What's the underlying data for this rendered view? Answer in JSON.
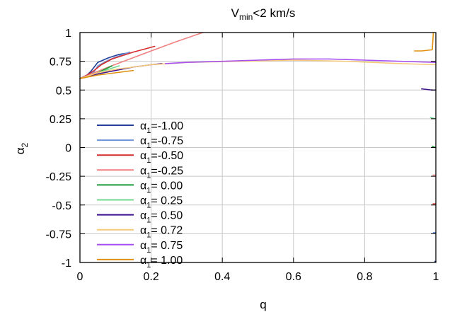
{
  "chart_data": {
    "type": "line",
    "title": {
      "prefix": "V",
      "subscript": "min",
      "suffix": "<2 km/s"
    },
    "xlabel": "q",
    "ylabel": {
      "symbol": "α",
      "subscript": "2"
    },
    "xlim": [
      0,
      1
    ],
    "ylim": [
      -1,
      1
    ],
    "xticks": [
      {
        "value": 0,
        "label": "0"
      },
      {
        "value": 0.2,
        "label": "0.2"
      },
      {
        "value": 0.4,
        "label": "0.4"
      },
      {
        "value": 0.6,
        "label": "0.6"
      },
      {
        "value": 0.8,
        "label": "0.8"
      },
      {
        "value": 1,
        "label": "1"
      }
    ],
    "yticks": [
      {
        "value": 1,
        "label": "1"
      },
      {
        "value": 0.75,
        "label": "0.75"
      },
      {
        "value": 0.5,
        "label": "0.5"
      },
      {
        "value": 0.25,
        "label": "0.25"
      },
      {
        "value": 0,
        "label": "0"
      },
      {
        "value": -0.25,
        "label": "-0.25"
      },
      {
        "value": -0.5,
        "label": "-0.5"
      },
      {
        "value": -0.75,
        "label": "-0.75"
      },
      {
        "value": -1,
        "label": "-1"
      }
    ],
    "grid": true,
    "legend_position": "middle-left",
    "series": [
      {
        "name_symbol": "α",
        "name_subscript": "1",
        "name_suffix": "=-1.00",
        "color": "#1f3f99",
        "segments": [
          [
            [
              0,
              0.6
            ],
            [
              0.02,
              0.63
            ],
            [
              0.03,
              0.66
            ],
            [
              0.04,
              0.7
            ],
            [
              0.05,
              0.74
            ],
            [
              0.08,
              0.78
            ],
            [
              0.11,
              0.81
            ],
            [
              0.13,
              0.82
            ]
          ],
          [
            [
              0.997,
              -0.99
            ],
            [
              1.0,
              -0.99
            ]
          ]
        ]
      },
      {
        "name_symbol": "α",
        "name_subscript": "1",
        "name_suffix": "=-0.75",
        "color": "#6f93d9",
        "segments": [
          [
            [
              0,
              0.6
            ],
            [
              0.02,
              0.63
            ],
            [
              0.04,
              0.66
            ],
            [
              0.05,
              0.71
            ],
            [
              0.08,
              0.76
            ],
            [
              0.12,
              0.81
            ],
            [
              0.14,
              0.83
            ]
          ],
          [
            [
              0.993,
              -0.74
            ],
            [
              1.0,
              -0.74
            ]
          ]
        ]
      },
      {
        "name_symbol": "α",
        "name_subscript": "1",
        "name_suffix": "=-0.50",
        "color": "#d62b2b",
        "segments": [
          [
            [
              0,
              0.6
            ],
            [
              0.02,
              0.63
            ],
            [
              0.04,
              0.67
            ],
            [
              0.06,
              0.72
            ],
            [
              0.09,
              0.77
            ],
            [
              0.15,
              0.83
            ],
            [
              0.21,
              0.88
            ]
          ],
          [
            [
              0.992,
              -0.49
            ],
            [
              1.0,
              -0.49
            ]
          ]
        ]
      },
      {
        "name_symbol": "α",
        "name_subscript": "1",
        "name_suffix": "=-0.25",
        "color": "#f07f7f",
        "segments": [
          [
            [
              0,
              0.6
            ],
            [
              0.04,
              0.65
            ],
            [
              0.08,
              0.7
            ],
            [
              0.14,
              0.77
            ],
            [
              0.2,
              0.84
            ],
            [
              0.27,
              0.92
            ],
            [
              0.345,
              1.0
            ]
          ],
          [
            [
              0.992,
              -0.24
            ],
            [
              1.0,
              -0.24
            ]
          ]
        ]
      },
      {
        "name_symbol": "α",
        "name_subscript": "1",
        "name_suffix": "= 0.00",
        "color": "#1c9c3a",
        "segments": [
          [
            [
              0,
              0.6
            ],
            [
              0.03,
              0.62
            ],
            [
              0.05,
              0.65
            ],
            [
              0.07,
              0.68
            ],
            [
              0.09,
              0.71
            ]
          ],
          [
            [
              0.99,
              0.01
            ],
            [
              1.0,
              0.0
            ]
          ]
        ]
      },
      {
        "name_symbol": "α",
        "name_subscript": "1",
        "name_suffix": "= 0.25",
        "color": "#73d98f",
        "segments": [
          [
            [
              0,
              0.6
            ],
            [
              0.03,
              0.63
            ],
            [
              0.06,
              0.66
            ],
            [
              0.09,
              0.69
            ],
            [
              0.11,
              0.71
            ]
          ],
          [
            [
              0.985,
              0.26
            ],
            [
              1.0,
              0.25
            ]
          ]
        ]
      },
      {
        "name_symbol": "α",
        "name_subscript": "1",
        "name_suffix": "= 0.50",
        "color": "#3d0f8f",
        "segments": [
          [
            [
              0,
              0.6
            ],
            [
              0.05,
              0.64
            ],
            [
              0.1,
              0.67
            ],
            [
              0.15,
              0.7
            ],
            [
              0.2,
              0.72
            ],
            [
              0.23,
              0.73
            ]
          ],
          [
            [
              0.96,
              0.51
            ],
            [
              0.99,
              0.5
            ],
            [
              1.0,
              0.5
            ]
          ]
        ]
      },
      {
        "name_symbol": "α",
        "name_subscript": "1",
        "name_suffix": "= 0.72",
        "color": "#f5c97a",
        "segments": [
          [
            [
              0,
              0.6
            ],
            [
              0.05,
              0.65
            ],
            [
              0.1,
              0.68
            ],
            [
              0.2,
              0.72
            ],
            [
              0.3,
              0.74
            ],
            [
              0.45,
              0.75
            ],
            [
              0.6,
              0.76
            ],
            [
              0.75,
              0.75
            ],
            [
              0.9,
              0.73
            ],
            [
              1.0,
              0.72
            ]
          ]
        ]
      },
      {
        "name_symbol": "α",
        "name_subscript": "1",
        "name_suffix": "= 0.75",
        "color": "#a64df2",
        "segments": [
          [
            [
              0.24,
              0.73
            ],
            [
              0.3,
              0.74
            ],
            [
              0.4,
              0.75
            ],
            [
              0.5,
              0.76
            ],
            [
              0.6,
              0.77
            ],
            [
              0.7,
              0.77
            ],
            [
              0.8,
              0.76
            ],
            [
              0.9,
              0.75
            ],
            [
              1.0,
              0.74
            ]
          ]
        ]
      },
      {
        "name_symbol": "α",
        "name_subscript": "1",
        "name_suffix": "= 1.00",
        "color": "#e0900f",
        "segments": [
          [
            [
              0,
              0.6
            ],
            [
              0.05,
              0.63
            ],
            [
              0.1,
              0.65
            ],
            [
              0.15,
              0.67
            ]
          ],
          [
            [
              0.94,
              0.84
            ],
            [
              0.96,
              0.84
            ],
            [
              0.99,
              0.85
            ],
            [
              0.993,
              1.0
            ]
          ]
        ]
      }
    ]
  }
}
